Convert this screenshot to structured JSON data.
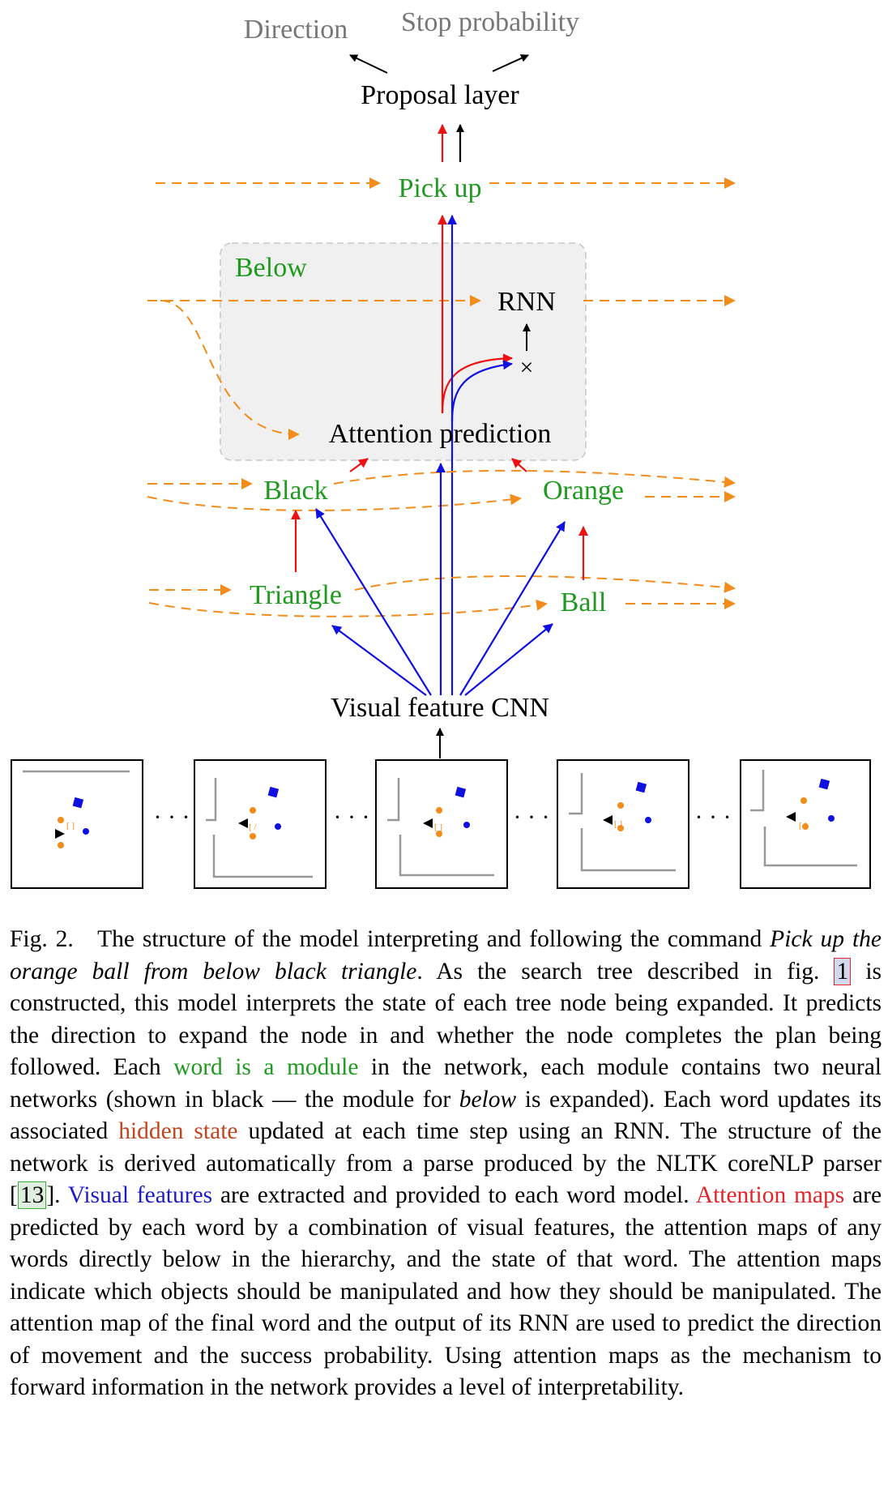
{
  "diagram": {
    "outputs": {
      "direction": "Direction",
      "stop": "Stop probability"
    },
    "proposal_layer": "Proposal layer",
    "modules": {
      "pickup": "Pick up",
      "below": "Below",
      "rnn": "RNN",
      "attention": "Attention prediction",
      "multiply": "×",
      "black": "Black",
      "orange": "Orange",
      "triangle": "Triangle",
      "ball": "Ball"
    },
    "cnn": "Visual feature CNN",
    "ellipsis": "· · ·",
    "colors": {
      "hidden_state": "#f28c1a",
      "visual": "#1010e0",
      "attention": "#ee1111",
      "module_label": "#1e9a1e",
      "output_label": "#777777",
      "box_fill": "#f0f0f0"
    },
    "frames": [
      {
        "frame": 1
      },
      {
        "frame": 2
      },
      {
        "frame": 3
      },
      {
        "frame": 4
      },
      {
        "frame": 5
      }
    ]
  },
  "caption": {
    "fig_label": "Fig. 2.",
    "p1": "The structure of the model interpreting and following the command",
    "command": "Pick up the orange ball from below black triangle",
    "p2": ". As the search tree described in fig.",
    "fig_ref": "1",
    "p3": "is constructed, this model interprets the state of each tree node being expanded. It predicts the direction to expand the node in and whether the node completes the plan being followed. Each",
    "green_text": "word is a module",
    "p4": "in the network, each module contains two neural networks (shown in black — the module for",
    "below_word": "below",
    "p5": "is expanded). Each word updates its associated",
    "orange_text": "hidden state",
    "p6": "updated at each time step using an RNN. The structure of the network is derived automatically from a parse produced by the NLTK coreNLP parser",
    "cite_open": "[",
    "cite_num": "13",
    "cite_close": "]",
    "p7": ".",
    "blue_text": "Visual features",
    "p8": "are extracted and provided to each word model.",
    "red_text": "Attention maps",
    "p9": "are predicted by each word by a combination of visual features, the attention maps of any words directly below in the hierarchy, and the state of that word. The attention maps indicate which objects should be manipulated and how they should be manipulated. The attention map of the final word and the output of its RNN are used to predict the direction of movement and the success probability. Using attention maps as the mechanism to forward information in the network provides a level of interpretability."
  }
}
